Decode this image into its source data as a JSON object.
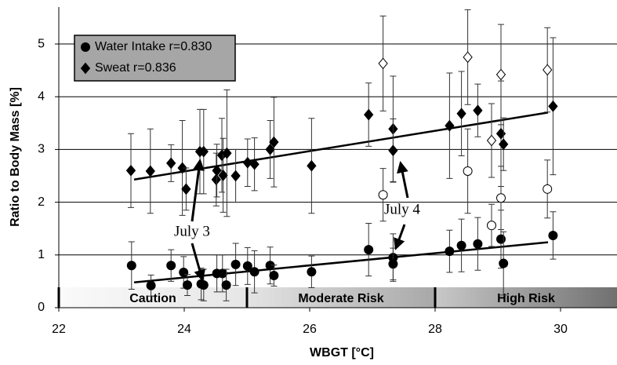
{
  "chart_data": {
    "type": "scatter",
    "xlabel": "WBGT  [°C]",
    "ylabel": "Ratio to Body Mass [%]",
    "xlim": [
      22,
      30.9
    ],
    "ylim": [
      0,
      5.7
    ],
    "xticks": [
      22,
      24,
      26,
      28,
      30
    ],
    "yticks": [
      0,
      1,
      2,
      3,
      4,
      5
    ],
    "grid": true,
    "legend": "upper left",
    "series": [
      {
        "name": "Water Intake r=0.830",
        "marker": "circle",
        "filled": true,
        "color": "#000000",
        "x": [
          23.16,
          23.47,
          23.79,
          23.99,
          24.05,
          24.27,
          24.31,
          24.52,
          24.61,
          24.67,
          24.82,
          25.01,
          25.12,
          25.37,
          25.43,
          26.03,
          26.94,
          27.33,
          27.33,
          28.23,
          28.42,
          28.68,
          29.05,
          29.09,
          29.88
        ],
        "values": [
          0.8,
          0.42,
          0.8,
          0.67,
          0.43,
          0.45,
          0.43,
          0.65,
          0.65,
          0.43,
          0.82,
          0.79,
          0.68,
          0.8,
          0.61,
          0.68,
          1.1,
          0.95,
          0.83,
          1.07,
          1.18,
          1.21,
          1.3,
          0.84,
          1.37
        ],
        "errors": [
          0.45,
          0.2,
          0.3,
          0.3,
          0.2,
          0.3,
          0.3,
          0.35,
          0.35,
          0.3,
          0.4,
          0.35,
          0.4,
          0.35,
          0.2,
          0.3,
          0.5,
          0.45,
          0.3,
          0.4,
          0.5,
          0.5,
          0.55,
          0.6,
          0.45
        ]
      },
      {
        "name": "Sweat r=0.836",
        "marker": "diamond",
        "filled": true,
        "color": "#000000",
        "x": [
          23.15,
          23.46,
          23.79,
          23.97,
          24.03,
          24.25,
          24.31,
          24.51,
          24.52,
          24.6,
          24.62,
          24.68,
          24.82,
          25.01,
          25.12,
          25.37,
          25.43,
          26.03,
          26.94,
          27.33,
          27.33,
          28.23,
          28.42,
          28.68,
          29.05,
          29.09,
          29.88
        ],
        "values": [
          2.6,
          2.59,
          2.74,
          2.65,
          2.25,
          2.96,
          2.96,
          2.43,
          2.6,
          2.89,
          2.51,
          2.93,
          2.5,
          2.75,
          2.72,
          3.0,
          3.14,
          2.69,
          3.66,
          3.39,
          2.98,
          3.45,
          3.68,
          3.74,
          3.3,
          3.1,
          3.82
        ],
        "errors": [
          0.7,
          0.8,
          0.35,
          0.9,
          0.4,
          0.8,
          0.8,
          0.5,
          0.5,
          0.7,
          0.7,
          1.2,
          0.5,
          0.45,
          0.5,
          0.55,
          0.85,
          0.9,
          0.6,
          1.0,
          0.6,
          1.0,
          0.8,
          0.5,
          1.0,
          0.5,
          1.3
        ]
      },
      {
        "marker": "circle",
        "filled": false,
        "color": "#000000",
        "x": [
          27.17,
          28.52,
          28.9,
          29.05,
          29.79
        ],
        "values": [
          2.14,
          2.59,
          1.56,
          2.08,
          2.25
        ],
        "errors": [
          0.5,
          0.8,
          0.4,
          0.6,
          0.55
        ]
      },
      {
        "marker": "diamond",
        "filled": false,
        "color": "#000000",
        "x": [
          27.17,
          28.52,
          28.9,
          29.05,
          29.79
        ],
        "values": [
          4.63,
          4.75,
          3.17,
          4.42,
          4.51
        ],
        "errors": [
          0.9,
          0.9,
          0.7,
          0.95,
          0.8
        ]
      }
    ],
    "trendlines": [
      {
        "x": [
          23.2,
          29.8
        ],
        "values": [
          0.48,
          1.24
        ]
      },
      {
        "x": [
          23.2,
          29.8
        ],
        "values": [
          2.43,
          3.7
        ]
      }
    ],
    "zones": [
      {
        "label": "Caution",
        "range": [
          22,
          25
        ]
      },
      {
        "label": "Moderate Risk",
        "range": [
          25,
          28
        ]
      },
      {
        "label": "High Risk",
        "range": [
          28,
          30.9
        ]
      }
    ],
    "annotations": [
      {
        "text": "July 3"
      },
      {
        "text": "July 4"
      }
    ]
  }
}
